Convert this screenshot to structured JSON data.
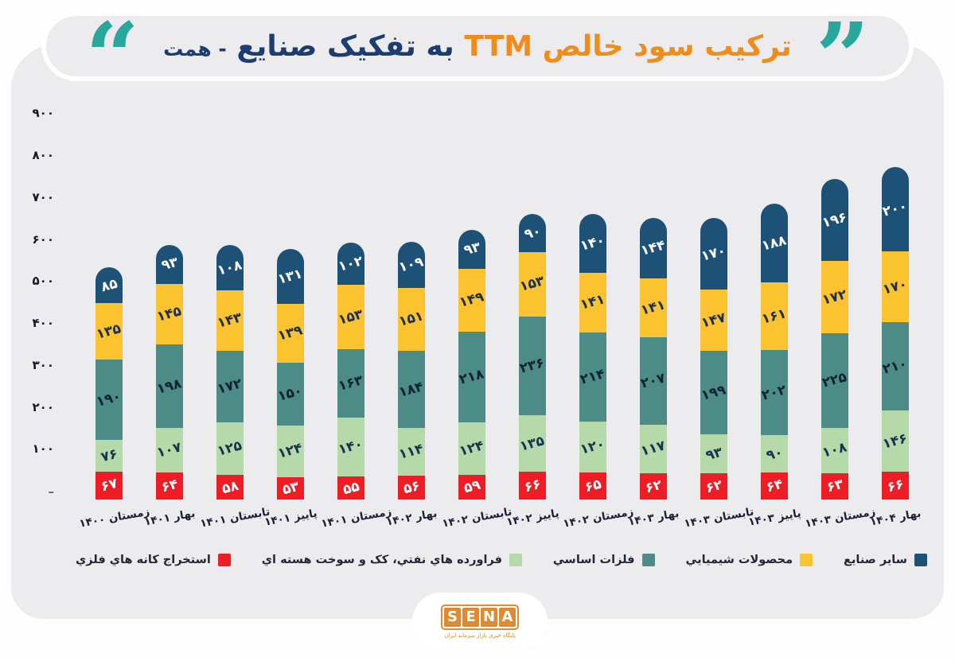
{
  "title": {
    "orange": "ترکیب سود خالص TTM",
    "navy": "به تفکیک صنایع",
    "hemat": "- همت"
  },
  "icons": {
    "quote_open": "“",
    "quote_close": "”"
  },
  "colors": {
    "title_orange": "#ef8c1a",
    "title_navy": "#1d3d70",
    "quote_teal": "#29a79b",
    "card_bg": "#ececee",
    "axis_text": "#15172b",
    "category_text": "#1a1f33",
    "legend_text": "#232733",
    "zero_dash": "#666666"
  },
  "chart_data": {
    "type": "bar",
    "stacked": true,
    "title": "ترکیب سود خالص TTM به تفکیک صنایع - همت",
    "xlabel": "",
    "ylabel": "",
    "ylim": [
      0,
      900
    ],
    "y_ticks": [
      900,
      800,
      700,
      600,
      500,
      400,
      300,
      200,
      100
    ],
    "zero_label": "–",
    "grid": false,
    "legend_position": "bottom",
    "categories": [
      "زمستان ۱۴۰۰",
      "بهار ۱۴۰۱",
      "تابستان ۱۴۰۱",
      "پاییز ۱۴۰۱",
      "زمستان ۱۴۰۱",
      "بهار ۱۴۰۲",
      "تابستان ۱۴۰۲",
      "پاییز ۱۴۰۲",
      "زمستان ۱۴۰۲",
      "بهار ۱۴۰۳",
      "تابستان ۱۴۰۳",
      "پاییز ۱۴۰۳",
      "زمستان ۱۴۰۳",
      "بهار ۱۴۰۴"
    ],
    "series": [
      {
        "name": "استخراج كانه هاي فلزي",
        "color": "#ee1c25",
        "value_color": "#ffffff",
        "values": [
          67,
          64,
          58,
          53,
          55,
          56,
          59,
          66,
          65,
          62,
          62,
          64,
          63,
          66
        ]
      },
      {
        "name": "فراورده هاي نفتي، كک و سوخت هسته اي",
        "color": "#b5d9a9",
        "value_color": "#17334f",
        "values": [
          76,
          107,
          125,
          124,
          140,
          114,
          124,
          135,
          120,
          117,
          93,
          90,
          108,
          146
        ]
      },
      {
        "name": "فلزات اساسي",
        "color": "#4d8b87",
        "value_color": "#0f2233",
        "values": [
          190,
          198,
          172,
          150,
          163,
          184,
          218,
          236,
          214,
          207,
          199,
          202,
          225,
          210
        ]
      },
      {
        "name": "محصولات شيميايي",
        "color": "#fcc331",
        "value_color": "#1c2f4e",
        "values": [
          135,
          145,
          143,
          139,
          153,
          151,
          149,
          153,
          141,
          141,
          147,
          161,
          172,
          170
        ]
      },
      {
        "name": "ساير صنايع",
        "color": "#1d5276",
        "value_color": "#ffffff",
        "values": [
          85,
          93,
          108,
          131,
          102,
          109,
          93,
          90,
          140,
          144,
          170,
          188,
          196,
          200
        ]
      }
    ]
  },
  "logo": {
    "letters": [
      "S",
      "E",
      "N",
      "A"
    ],
    "subtitle": "پایگاه خبری بازار سرمایه ایران"
  }
}
